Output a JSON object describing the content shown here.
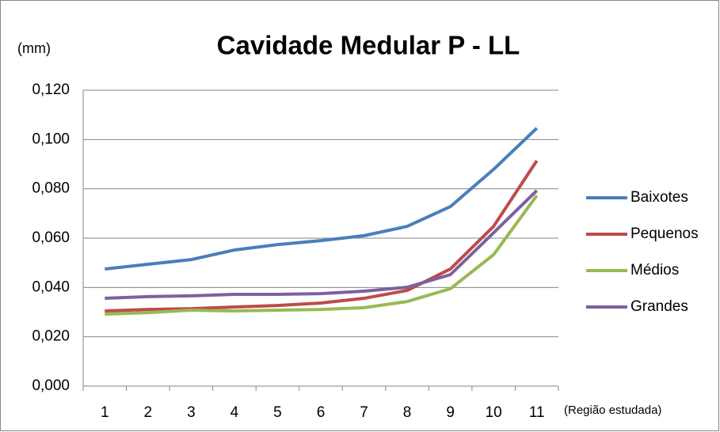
{
  "chart_data": {
    "type": "line",
    "title": "Cavidade Medular  P - LL",
    "y_label": "(mm)",
    "x_label": "(Região estudada)",
    "categories": [
      "1",
      "2",
      "3",
      "4",
      "5",
      "6",
      "7",
      "8",
      "9",
      "10",
      "11"
    ],
    "series": [
      {
        "name": "Baixotes",
        "color": "#4a7ebb",
        "values": [
          0.0475,
          0.0494,
          0.0513,
          0.0552,
          0.0574,
          0.059,
          0.061,
          0.0648,
          0.0728,
          0.0879,
          0.1046
        ]
      },
      {
        "name": "Pequenos",
        "color": "#be4b48",
        "values": [
          0.0305,
          0.0311,
          0.0314,
          0.0321,
          0.0327,
          0.0337,
          0.0356,
          0.0388,
          0.0475,
          0.0648,
          0.0914
        ]
      },
      {
        "name": "Médios",
        "color": "#98b954",
        "values": [
          0.0292,
          0.0298,
          0.0308,
          0.0305,
          0.0308,
          0.0311,
          0.0318,
          0.0343,
          0.0395,
          0.0533,
          0.0773
        ]
      },
      {
        "name": "Grandes",
        "color": "#7d60a0",
        "values": [
          0.0356,
          0.0363,
          0.0366,
          0.0372,
          0.0372,
          0.0375,
          0.0385,
          0.0401,
          0.0452,
          0.0622,
          0.0793
        ]
      }
    ],
    "ylim": [
      0,
      0.12
    ],
    "yticks": [
      {
        "value": 0,
        "label": "0,000"
      },
      {
        "value": 0.02,
        "label": "0,020"
      },
      {
        "value": 0.04,
        "label": "0,040"
      },
      {
        "value": 0.06,
        "label": "0,060"
      },
      {
        "value": 0.08,
        "label": "0,080"
      },
      {
        "value": 0.1,
        "label": "0,100"
      },
      {
        "value": 0.12,
        "label": "0,120"
      }
    ],
    "grid": true,
    "legend": "right"
  }
}
